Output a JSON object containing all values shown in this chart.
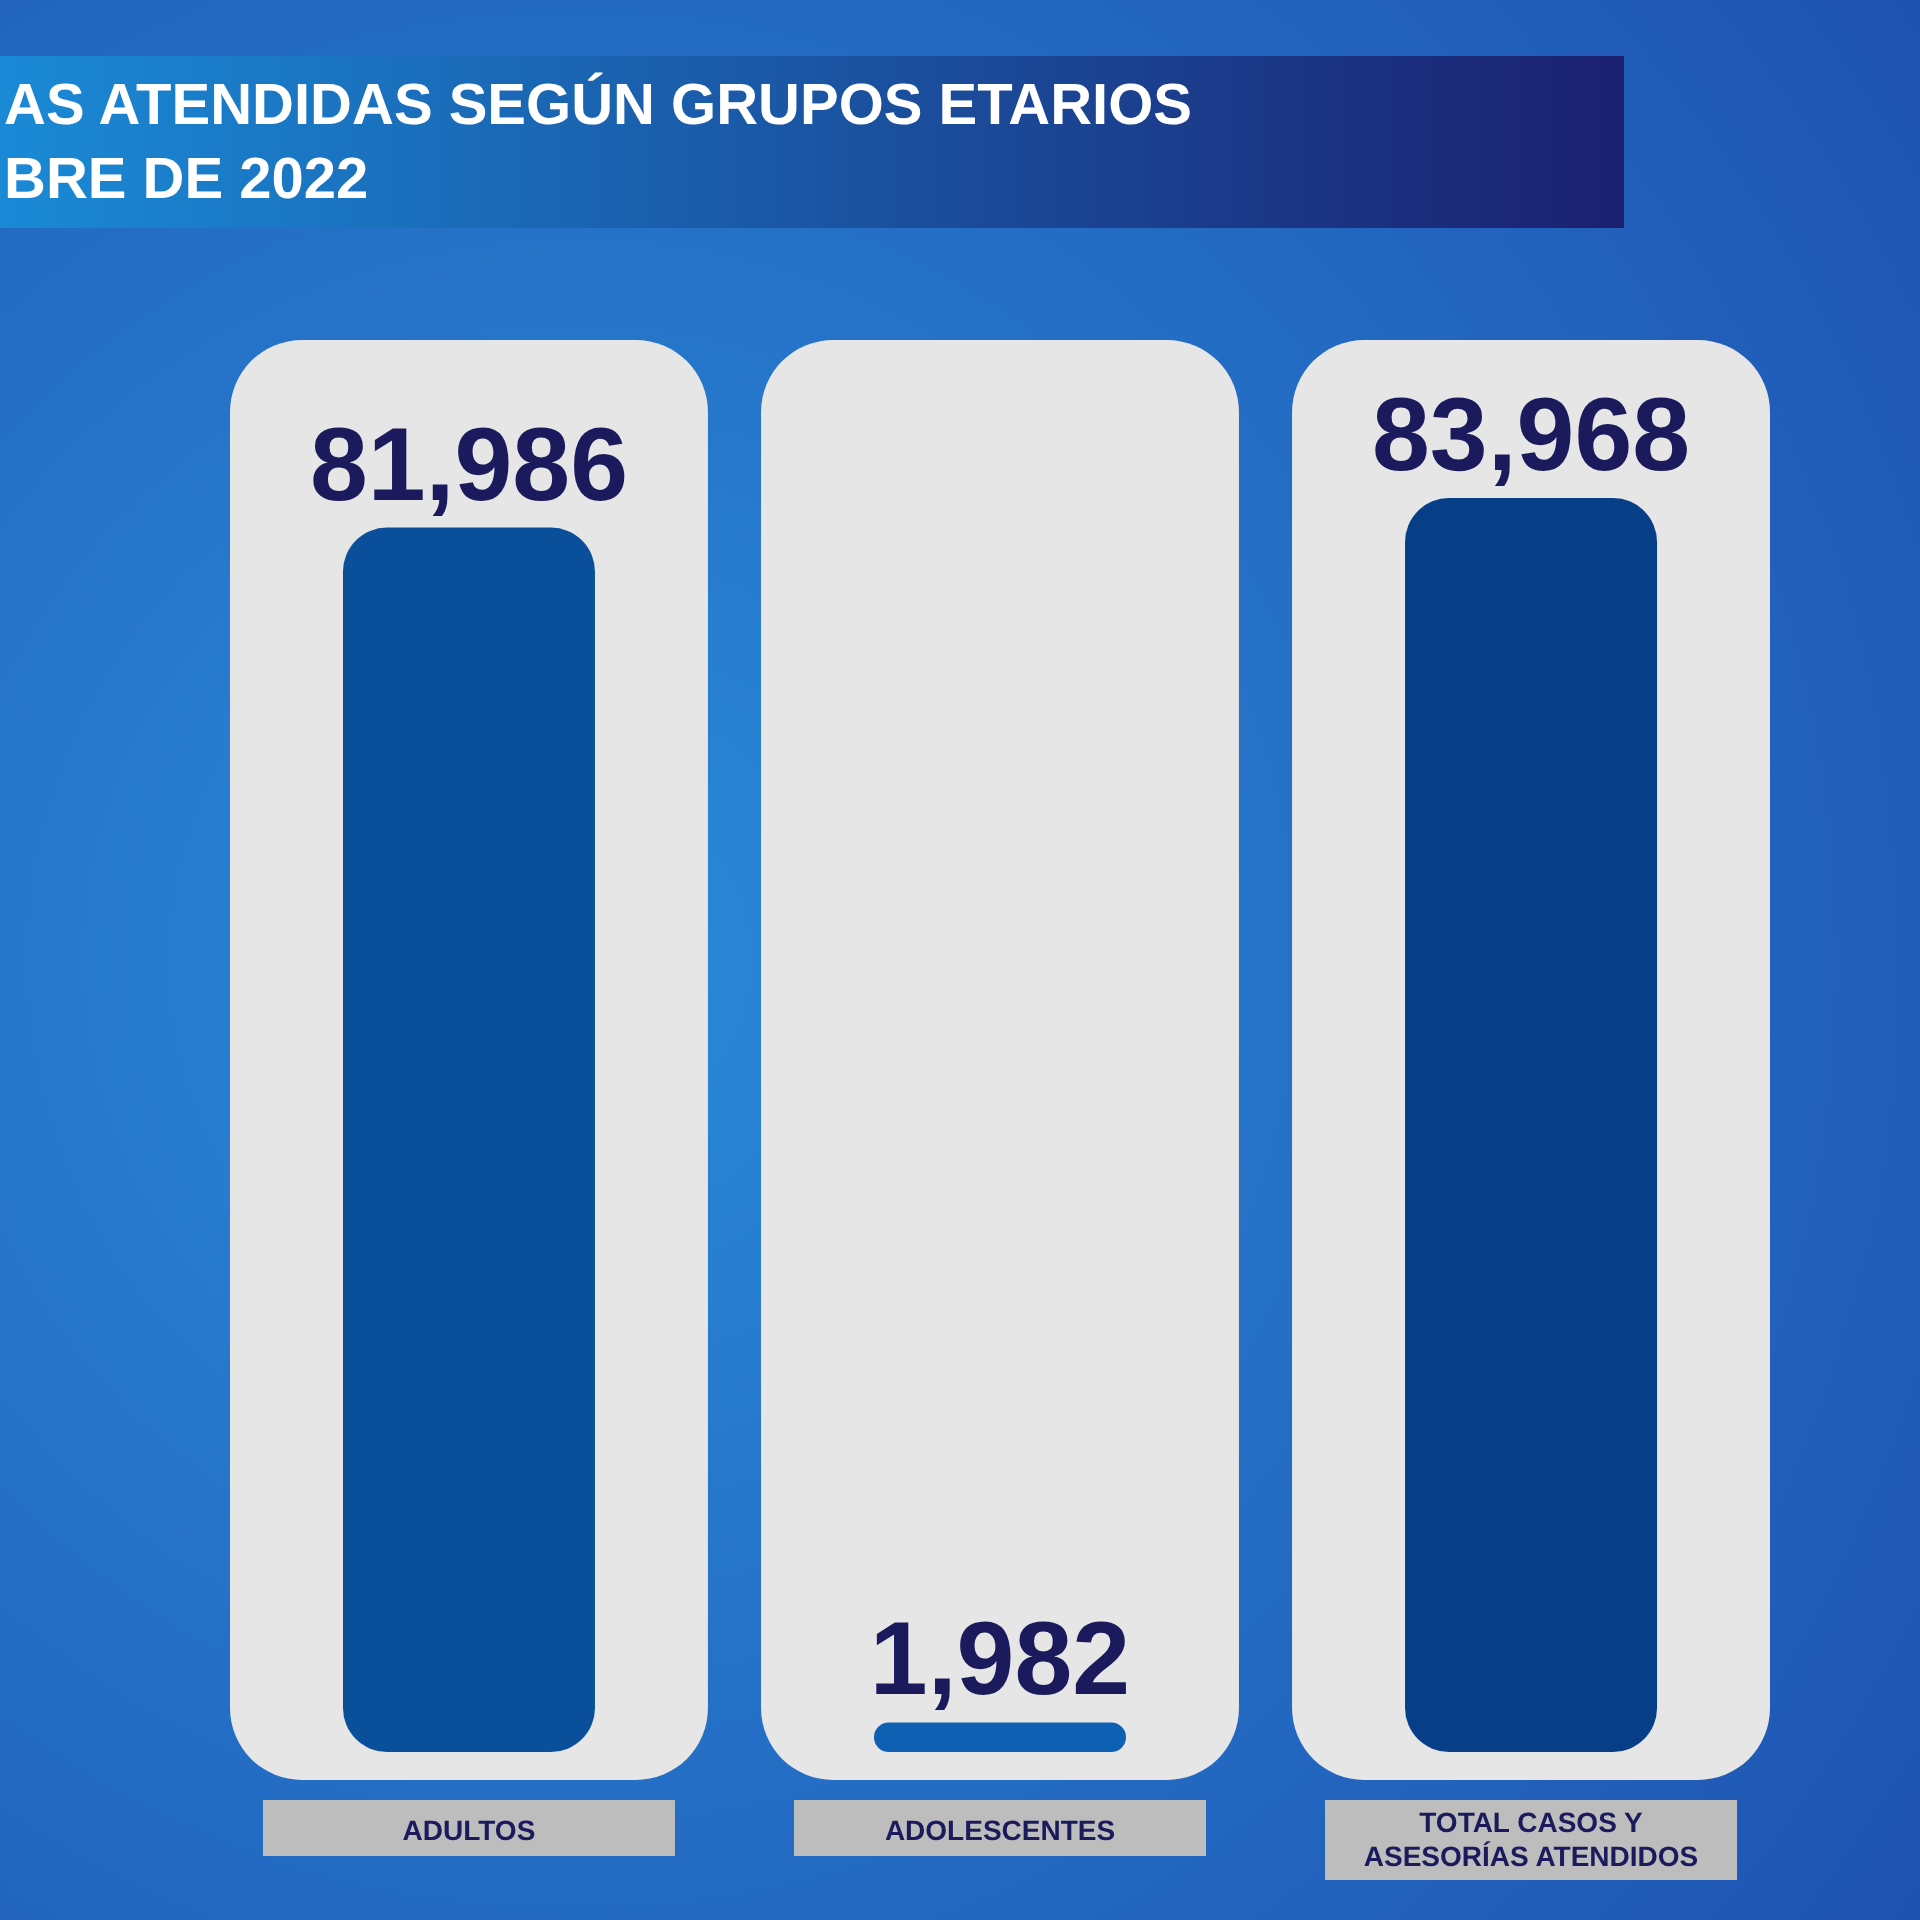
{
  "chart_data": {
    "type": "bar",
    "title": "AS ATENDIDAS SEGÚN GRUPOS ETARIOS",
    "subtitle": "BRE DE 2022",
    "categories": [
      "ADULTOS",
      "ADOLESCENTES",
      "TOTAL CASOS Y ASESORÍAS ATENDIDOS"
    ],
    "values": [
      81986,
      1982,
      83968
    ],
    "colors": [
      "#0a4f9a",
      "#0e60b2",
      "#063f88"
    ],
    "value_labels": [
      "81,986",
      "1,982",
      "83,968"
    ]
  }
}
